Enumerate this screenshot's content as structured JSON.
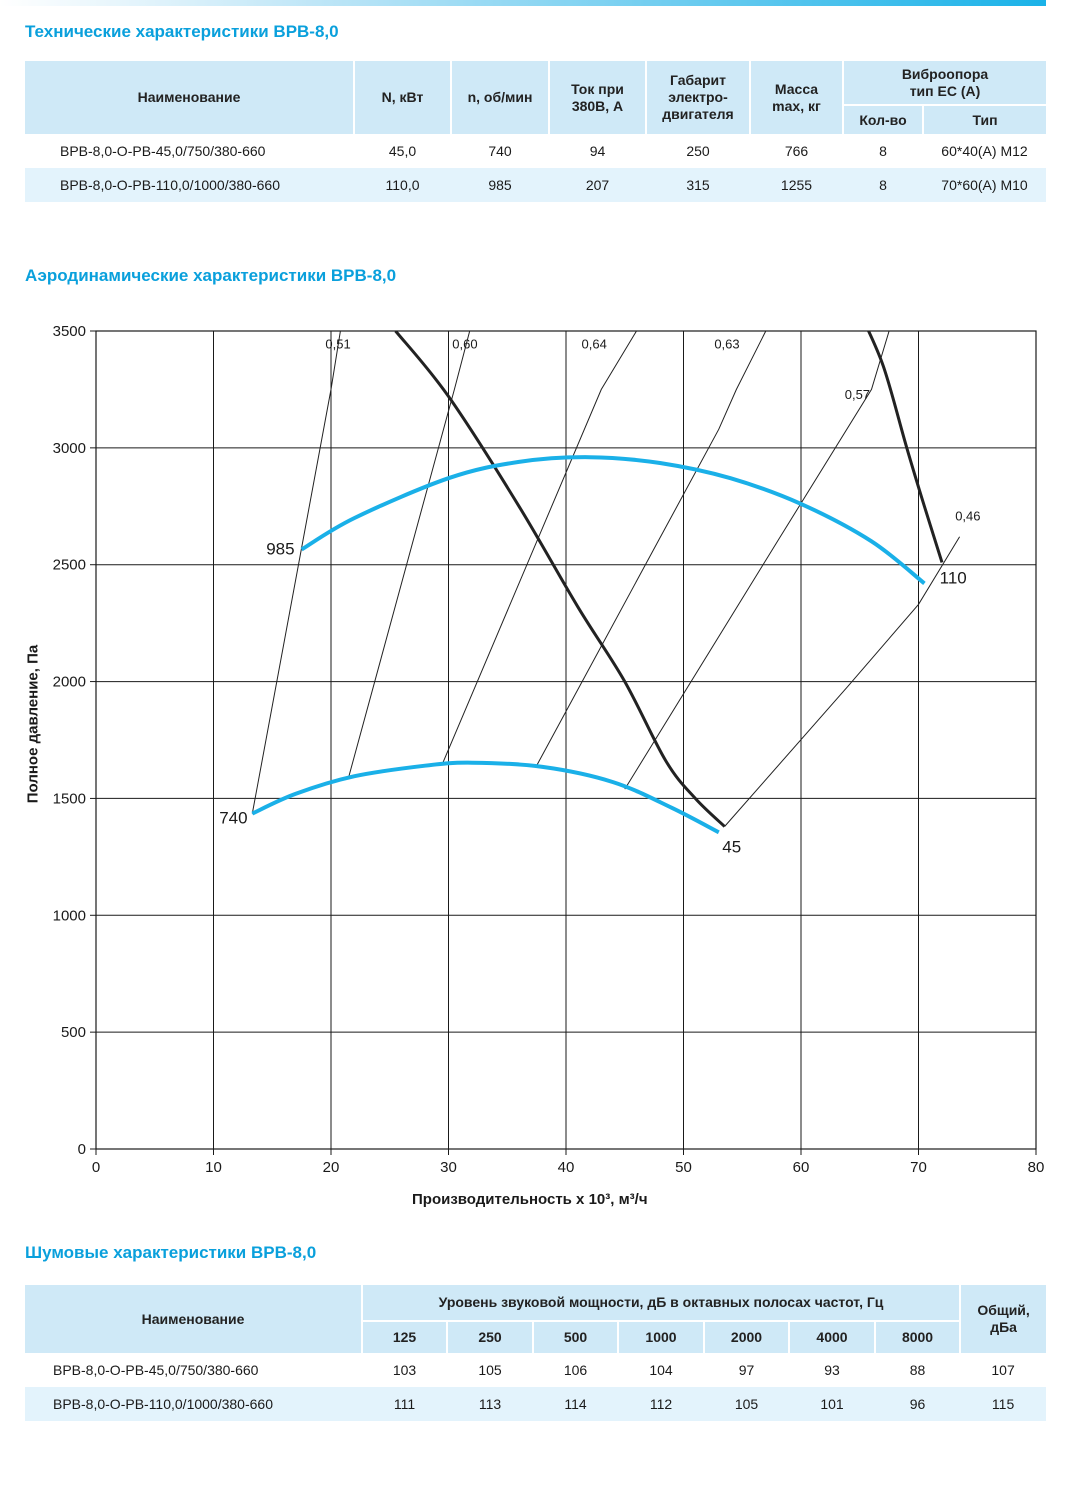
{
  "tech": {
    "title": "Технические характеристики ВРВ-8,0",
    "headers": {
      "name": "Наименование",
      "power": "N, кВт",
      "speed": "n, об/мин",
      "current_1": "Ток при",
      "current_2": "380В, А",
      "frame_1": "Габарит",
      "frame_2": "электро-",
      "frame_3": "двигателя",
      "mass_1": "Масса",
      "mass_2": "max, кг",
      "vibro_1": "Виброопора",
      "vibro_2": "тип ЕС (А)",
      "qty": "Кол-во",
      "type": "Тип"
    },
    "rows": [
      {
        "name": "ВРВ-8,0-О-РВ-45,0/750/380-660",
        "power": "45,0",
        "speed": "740",
        "current": "94",
        "frame": "250",
        "mass": "766",
        "qty": "8",
        "type": "60*40(А) М12"
      },
      {
        "name": "ВРВ-8,0-О-РВ-110,0/1000/380-660",
        "power": "110,0",
        "speed": "985",
        "current": "207",
        "frame": "315",
        "mass": "1255",
        "qty": "8",
        "type": "70*60(А) М10"
      }
    ]
  },
  "aero": {
    "title": "Аэродинамические характеристики ВРВ-8,0"
  },
  "chart_data": {
    "type": "line",
    "xlabel": "Производительность х 10³, м³/ч",
    "ylabel": "Полное давление, Па",
    "xlim": [
      0,
      80
    ],
    "ylim": [
      0,
      3500
    ],
    "x_ticks": [
      "0",
      "10",
      "20",
      "30",
      "40",
      "50",
      "60",
      "70",
      "80"
    ],
    "y_ticks": [
      "0",
      "500",
      "1000",
      "1500",
      "2000",
      "2500",
      "3000",
      "3500"
    ],
    "grid": true,
    "colors": {
      "speed_curve": "#1ab0e8",
      "power_curve": "#222222",
      "efficiency_line": "#222222"
    },
    "speed_curves": [
      {
        "label": "985",
        "points": [
          [
            17.5,
            2565
          ],
          [
            22,
            2700
          ],
          [
            30,
            2870
          ],
          [
            36,
            2940
          ],
          [
            42,
            2960
          ],
          [
            48,
            2935
          ],
          [
            54,
            2870
          ],
          [
            60,
            2760
          ],
          [
            66,
            2600
          ],
          [
            70.5,
            2420
          ]
        ]
      },
      {
        "label": "740",
        "points": [
          [
            13.3,
            1435
          ],
          [
            17,
            1520
          ],
          [
            22,
            1595
          ],
          [
            28,
            1640
          ],
          [
            32,
            1653
          ],
          [
            38,
            1635
          ],
          [
            44,
            1570
          ],
          [
            49,
            1460
          ],
          [
            53,
            1355
          ]
        ]
      }
    ],
    "power_curves": [
      {
        "label": "110",
        "points": [
          [
            65,
            3580
          ],
          [
            67,
            3350
          ],
          [
            69,
            3000
          ],
          [
            70.5,
            2750
          ],
          [
            72,
            2510
          ]
        ]
      },
      {
        "label": "45",
        "points": [
          [
            25.5,
            3500
          ],
          [
            30,
            3220
          ],
          [
            36,
            2750
          ],
          [
            41,
            2320
          ],
          [
            45,
            2000
          ],
          [
            48.5,
            1660
          ],
          [
            51,
            1500
          ],
          [
            53.5,
            1380
          ]
        ]
      }
    ],
    "efficiency_lines": [
      {
        "label": "0,51",
        "points": [
          [
            13.3,
            1435
          ],
          [
            20,
            3250
          ],
          [
            20.8,
            3500
          ]
        ]
      },
      {
        "label": "0,60",
        "points": [
          [
            21.5,
            1590
          ],
          [
            30.5,
            3250
          ],
          [
            31.8,
            3500
          ]
        ]
      },
      {
        "label": "0,64",
        "points": [
          [
            29.5,
            1650
          ],
          [
            43,
            3250
          ],
          [
            46,
            3500
          ]
        ]
      },
      {
        "label": "0,63",
        "points": [
          [
            37.5,
            1640
          ],
          [
            53,
            3080
          ],
          [
            54.5,
            3250
          ],
          [
            57,
            3500
          ]
        ]
      },
      {
        "label": "0,57",
        "points": [
          [
            45,
            1540
          ],
          [
            58,
            2600
          ],
          [
            66,
            3250
          ],
          [
            67.5,
            3500
          ]
        ]
      },
      {
        "label": "0,46",
        "points": [
          [
            53.5,
            1380
          ],
          [
            64,
            1980
          ],
          [
            70,
            2330
          ],
          [
            73.5,
            2620
          ]
        ]
      }
    ]
  },
  "noise": {
    "title": "Шумовые характеристики ВРВ-8,0",
    "headers": {
      "name": "Наименование",
      "level": "Уровень звуковой мощности, дБ в октавных полосах частот, Гц",
      "total_1": "Общий,",
      "total_2": "дБа"
    },
    "bands": [
      "125",
      "250",
      "500",
      "1000",
      "2000",
      "4000",
      "8000"
    ],
    "rows": [
      {
        "name": "ВРВ-8,0-О-РВ-45,0/750/380-660",
        "values": [
          "103",
          "105",
          "106",
          "104",
          "97",
          "93",
          "88"
        ],
        "total": "107"
      },
      {
        "name": "ВРВ-8,0-О-РВ-110,0/1000/380-660",
        "values": [
          "111",
          "113",
          "114",
          "112",
          "105",
          "101",
          "96"
        ],
        "total": "115"
      }
    ]
  }
}
